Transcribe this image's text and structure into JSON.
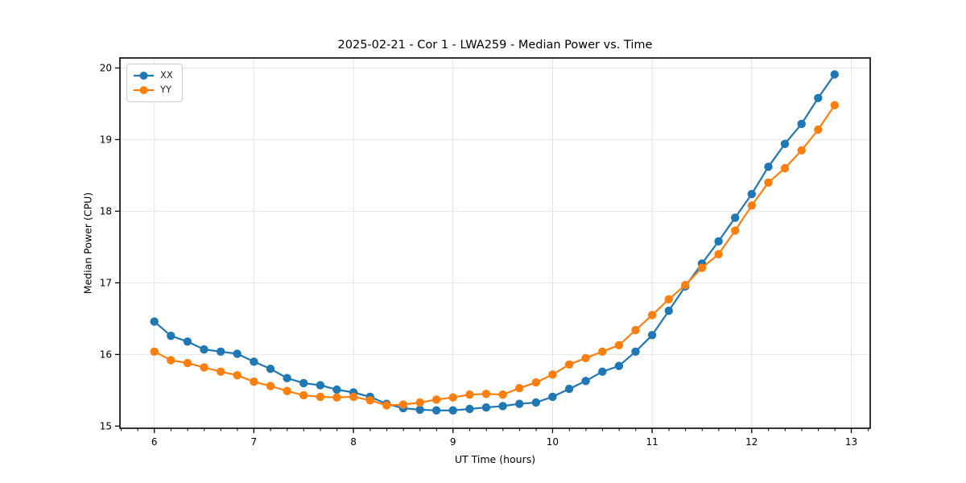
{
  "chart_data": {
    "type": "line",
    "title": "2025-02-21 - Cor 1 - LWA259 - Median Power vs. Time",
    "xlabel": "UT Time (hours)",
    "ylabel": "Median Power (CPU)",
    "grid": true,
    "legend_position": "upper left",
    "x_ticks": [
      6,
      7,
      8,
      9,
      10,
      11,
      12,
      13
    ],
    "y_ticks": [
      15,
      16,
      17,
      18,
      19,
      20
    ],
    "xlim": [
      5.655,
      13.19
    ],
    "ylim": [
      14.97,
      20.14
    ],
    "x_minor_tick_step": 0.1667,
    "x": [
      6.0,
      6.167,
      6.333,
      6.5,
      6.667,
      6.833,
      7.0,
      7.167,
      7.333,
      7.5,
      7.667,
      7.833,
      8.0,
      8.167,
      8.333,
      8.5,
      8.667,
      8.833,
      9.0,
      9.167,
      9.333,
      9.5,
      9.667,
      9.833,
      10.0,
      10.167,
      10.333,
      10.5,
      10.667,
      10.833,
      11.0,
      11.167,
      11.333,
      11.5,
      11.667,
      11.833,
      12.0,
      12.167,
      12.333,
      12.5,
      12.667,
      12.833
    ],
    "series": [
      {
        "name": "XX",
        "color": "#1f77b4",
        "values": [
          16.46,
          16.26,
          16.18,
          16.07,
          16.04,
          16.01,
          15.9,
          15.8,
          15.67,
          15.6,
          15.57,
          15.51,
          15.47,
          15.41,
          15.31,
          15.25,
          15.23,
          15.22,
          15.22,
          15.24,
          15.26,
          15.28,
          15.31,
          15.33,
          15.41,
          15.52,
          15.63,
          15.76,
          15.84,
          16.04,
          16.27,
          16.61,
          16.95,
          17.27,
          17.58,
          17.91,
          18.24,
          18.62,
          18.94,
          19.22,
          19.58,
          19.91
        ]
      },
      {
        "name": "YY",
        "color": "#ff7f0e",
        "values": [
          16.04,
          15.92,
          15.88,
          15.82,
          15.76,
          15.71,
          15.62,
          15.56,
          15.49,
          15.43,
          15.41,
          15.4,
          15.41,
          15.36,
          15.29,
          15.3,
          15.33,
          15.37,
          15.4,
          15.44,
          15.45,
          15.44,
          15.53,
          15.61,
          15.72,
          15.86,
          15.95,
          16.04,
          16.13,
          16.34,
          16.55,
          16.77,
          16.97,
          17.21,
          17.4,
          17.73,
          18.08,
          18.4,
          18.6,
          18.85,
          19.14,
          19.48
        ]
      }
    ],
    "style": {
      "grid_color": "#e4e4e4",
      "spine_color": "#000000",
      "tick_color": "#000000",
      "text_color": "#000000"
    }
  }
}
